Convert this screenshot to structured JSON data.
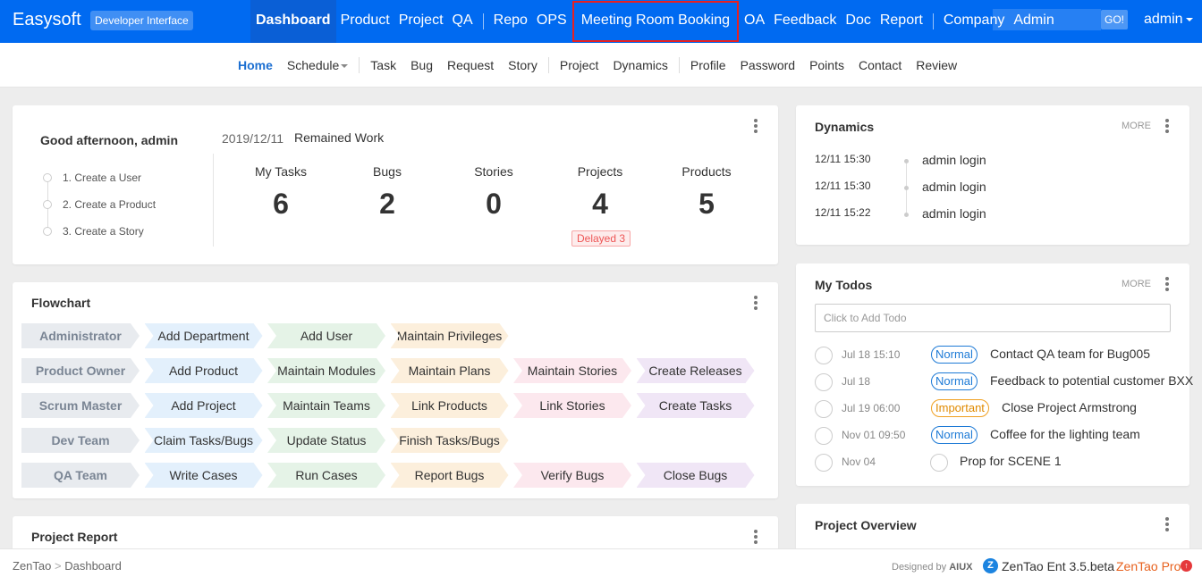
{
  "header": {
    "brand": "Easysoft",
    "badge": "Developer Interface",
    "nav": [
      {
        "label": "Dashboard"
      },
      {
        "label": "Product"
      },
      {
        "label": "Project"
      },
      {
        "label": "QA"
      },
      {
        "label": "Repo"
      },
      {
        "label": "OPS"
      },
      {
        "label": "Meeting Room Booking"
      },
      {
        "label": "OA"
      },
      {
        "label": "Feedback"
      },
      {
        "label": "Doc"
      },
      {
        "label": "Report"
      },
      {
        "label": "Company"
      },
      {
        "label": "Admin"
      }
    ],
    "search_button": "GO!",
    "user": "admin"
  },
  "subnav": {
    "items": [
      {
        "label": "Home"
      },
      {
        "label": "Schedule"
      },
      {
        "label": "Task"
      },
      {
        "label": "Bug"
      },
      {
        "label": "Request"
      },
      {
        "label": "Story"
      },
      {
        "label": "Project"
      },
      {
        "label": "Dynamics"
      },
      {
        "label": "Profile"
      },
      {
        "label": "Password"
      },
      {
        "label": "Points"
      },
      {
        "label": "Contact"
      },
      {
        "label": "Review"
      }
    ]
  },
  "welcome": {
    "greeting": "Good afternoon, admin",
    "steps": [
      "1. Create a User",
      "2. Create a Product",
      "3. Create a Story"
    ],
    "date": "2019/12/11",
    "remained_label": "Remained Work",
    "stats": [
      {
        "label": "My Tasks",
        "value": "6"
      },
      {
        "label": "Bugs",
        "value": "2"
      },
      {
        "label": "Stories",
        "value": "0"
      },
      {
        "label": "Projects",
        "value": "4"
      },
      {
        "label": "Products",
        "value": "5"
      }
    ],
    "delayed": "Delayed 3"
  },
  "flowchart": {
    "title": "Flowchart",
    "rows": [
      {
        "role": "Administrator",
        "steps": [
          "Add Department",
          "Add User",
          "Maintain Privileges"
        ]
      },
      {
        "role": "Product Owner",
        "steps": [
          "Add Product",
          "Maintain Modules",
          "Maintain Plans",
          "Maintain Stories",
          "Create Releases"
        ]
      },
      {
        "role": "Scrum Master",
        "steps": [
          "Add Project",
          "Maintain Teams",
          "Link Products",
          "Link Stories",
          "Create Tasks"
        ]
      },
      {
        "role": "Dev Team",
        "steps": [
          "Claim Tasks/Bugs",
          "Update Status",
          "Finish Tasks/Bugs"
        ]
      },
      {
        "role": "QA Team",
        "steps": [
          "Write Cases",
          "Run Cases",
          "Report Bugs",
          "Verify Bugs",
          "Close Bugs"
        ]
      }
    ],
    "colors": [
      "#e3f0fc",
      "#e5f3e7",
      "#fcefdc",
      "#fce8ee",
      "#f0e6f6"
    ]
  },
  "project_report": {
    "title": "Project Report"
  },
  "dynamics": {
    "title": "Dynamics",
    "more": "MORE",
    "items": [
      {
        "time": "12/11 15:30",
        "text": "admin login"
      },
      {
        "time": "12/11 15:30",
        "text": "admin login"
      },
      {
        "time": "12/11 15:22",
        "text": "admin login"
      }
    ]
  },
  "todos": {
    "title": "My Todos",
    "more": "MORE",
    "placeholder": "Click to Add Todo",
    "items": [
      {
        "date": "Jul 18 15:10",
        "priority": "Normal",
        "text": "Contact QA team for Bug005"
      },
      {
        "date": "Jul 18",
        "priority": "Normal",
        "text": "Feedback to potential customer BXX"
      },
      {
        "date": "Jul 19 06:00",
        "priority": "Important",
        "text": "Close Project Armstrong"
      },
      {
        "date": "Nov 01 09:50",
        "priority": "Normal",
        "text": "Coffee for the lighting team"
      },
      {
        "date": "Nov 04",
        "priority": "",
        "text": "Prop for SCENE 1"
      }
    ]
  },
  "project_overview": {
    "title": "Project Overview"
  },
  "footer": {
    "breadcrumb": [
      "ZenTao",
      "Dashboard"
    ],
    "designed_by": "Designed by",
    "designer": "AIUX",
    "edition": "ZenTao Ent 3.5.beta",
    "pro": "ZenTao Pro"
  }
}
